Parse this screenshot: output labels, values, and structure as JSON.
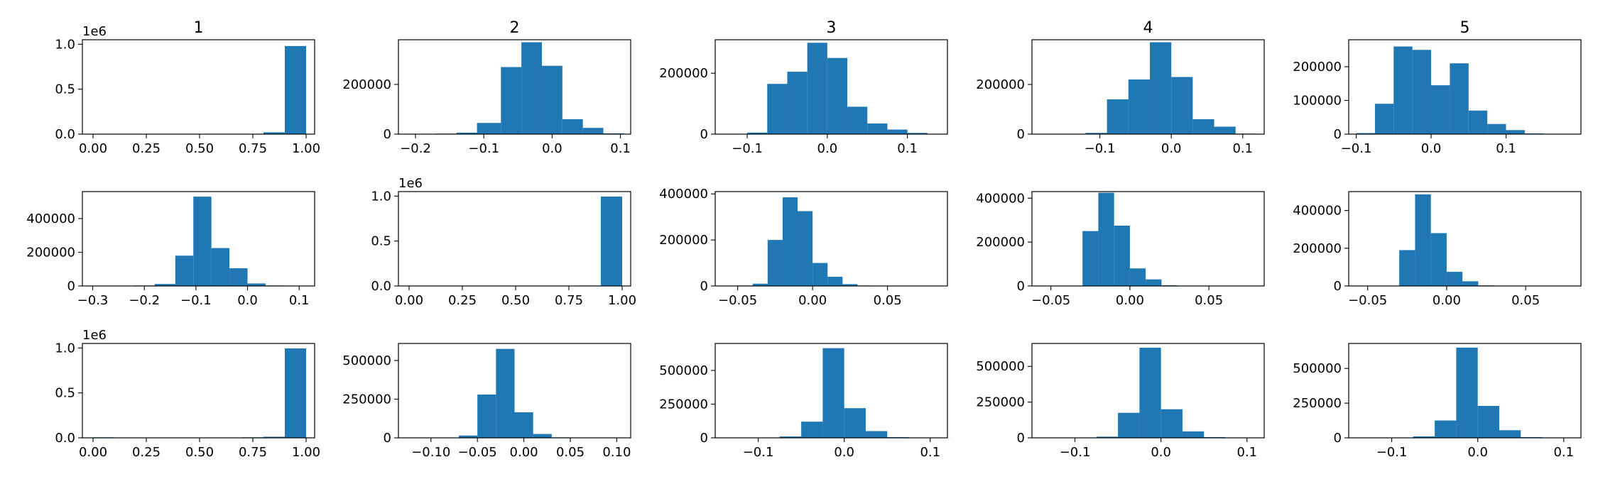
{
  "figure": {
    "bar_color": "#1f77b4",
    "background": "#ffffff"
  },
  "chart_data": [
    {
      "type": "bar",
      "row": 0,
      "col": 0,
      "title": "1",
      "xlim": [
        -0.05,
        1.04
      ],
      "ylim": [
        0,
        1.05
      ],
      "xticks": [
        0,
        0.25,
        0.5,
        0.75,
        1
      ],
      "xtick_labels": [
        "0.00",
        "0.25",
        "0.50",
        "0.75",
        "1.00"
      ],
      "yticks": [
        0,
        0.5,
        1
      ],
      "ytick_labels": [
        "0.0",
        "0.5",
        "1.0"
      ],
      "offset_label": "1e6",
      "bins": [
        [
          0.0,
          0.1,
          0.001
        ],
        [
          0.1,
          0.2,
          0.0005
        ],
        [
          0.2,
          0.3,
          0
        ],
        [
          0.3,
          0.4,
          0
        ],
        [
          0.4,
          0.5,
          0
        ],
        [
          0.5,
          0.6,
          0
        ],
        [
          0.6,
          0.7,
          0
        ],
        [
          0.7,
          0.8,
          0.002
        ],
        [
          0.8,
          0.9,
          0.02
        ],
        [
          0.9,
          1.0,
          0.98
        ]
      ]
    },
    {
      "type": "bar",
      "row": 0,
      "col": 1,
      "title": "2",
      "xlim": [
        -0.225,
        0.115
      ],
      "ylim": [
        0,
        380000
      ],
      "xticks": [
        -0.2,
        -0.1,
        0,
        0.1
      ],
      "xtick_labels": [
        "−0.2",
        "−0.1",
        "0.0",
        "0.1"
      ],
      "yticks": [
        0,
        200000
      ],
      "ytick_labels": [
        "0",
        "200000"
      ],
      "bins": [
        [
          -0.2,
          -0.17,
          1000
        ],
        [
          -0.17,
          -0.14,
          2000
        ],
        [
          -0.14,
          -0.11,
          6000
        ],
        [
          -0.11,
          -0.075,
          45000
        ],
        [
          -0.075,
          -0.045,
          270000
        ],
        [
          -0.045,
          -0.015,
          370000
        ],
        [
          -0.015,
          0.015,
          275000
        ],
        [
          0.015,
          0.045,
          60000
        ],
        [
          0.045,
          0.075,
          25000
        ],
        [
          0.075,
          0.105,
          3000
        ]
      ]
    },
    {
      "type": "bar",
      "row": 0,
      "col": 2,
      "title": "3",
      "xlim": [
        -0.14,
        0.15
      ],
      "ylim": [
        0,
        310000
      ],
      "xticks": [
        -0.1,
        0,
        0.1
      ],
      "xtick_labels": [
        "−0.1",
        "0.0",
        "0.1"
      ],
      "yticks": [
        0,
        200000
      ],
      "ytick_labels": [
        "0",
        "200000"
      ],
      "bins": [
        [
          -0.125,
          -0.1,
          1000
        ],
        [
          -0.1,
          -0.075,
          5000
        ],
        [
          -0.075,
          -0.05,
          165000
        ],
        [
          -0.05,
          -0.025,
          205000
        ],
        [
          -0.025,
          0.0,
          300000
        ],
        [
          0.0,
          0.025,
          250000
        ],
        [
          0.025,
          0.05,
          90000
        ],
        [
          0.05,
          0.075,
          35000
        ],
        [
          0.075,
          0.1,
          15000
        ],
        [
          0.1,
          0.125,
          4000
        ]
      ]
    },
    {
      "type": "bar",
      "row": 0,
      "col": 3,
      "title": "4",
      "xlim": [
        -0.195,
        0.13
      ],
      "ylim": [
        0,
        380000
      ],
      "xticks": [
        -0.1,
        0,
        0.1
      ],
      "xtick_labels": [
        "−0.1",
        "0.0",
        "0.1"
      ],
      "yticks": [
        0,
        200000
      ],
      "ytick_labels": [
        "0",
        "200000"
      ],
      "bins": [
        [
          -0.18,
          -0.15,
          500
        ],
        [
          -0.15,
          -0.12,
          1000
        ],
        [
          -0.12,
          -0.09,
          5000
        ],
        [
          -0.09,
          -0.06,
          140000
        ],
        [
          -0.06,
          -0.03,
          220000
        ],
        [
          -0.03,
          0.0,
          370000
        ],
        [
          0.0,
          0.03,
          230000
        ],
        [
          0.03,
          0.06,
          60000
        ],
        [
          0.06,
          0.09,
          30000
        ],
        [
          0.09,
          0.12,
          2000
        ]
      ]
    },
    {
      "type": "bar",
      "row": 0,
      "col": 4,
      "title": "5",
      "xlim": [
        -0.11,
        0.2
      ],
      "ylim": [
        0,
        280000
      ],
      "xticks": [
        -0.1,
        0,
        0.1
      ],
      "xtick_labels": [
        "−0.1",
        "0.0",
        "0.1"
      ],
      "yticks": [
        0,
        100000,
        200000
      ],
      "ytick_labels": [
        "0",
        "100000",
        "200000"
      ],
      "bins": [
        [
          -0.1,
          -0.075,
          3000
        ],
        [
          -0.075,
          -0.05,
          90000
        ],
        [
          -0.05,
          -0.025,
          260000
        ],
        [
          -0.025,
          0.0,
          250000
        ],
        [
          0.0,
          0.025,
          145000
        ],
        [
          0.025,
          0.05,
          210000
        ],
        [
          0.05,
          0.075,
          70000
        ],
        [
          0.075,
          0.1,
          30000
        ],
        [
          0.1,
          0.125,
          12000
        ],
        [
          0.125,
          0.15,
          2000
        ]
      ]
    },
    {
      "type": "bar",
      "row": 1,
      "col": 0,
      "title": "",
      "xlim": [
        -0.32,
        0.13
      ],
      "ylim": [
        0,
        560000
      ],
      "xticks": [
        -0.3,
        -0.2,
        -0.1,
        0,
        0.1
      ],
      "xtick_labels": [
        "−0.3",
        "−0.2",
        "−0.1",
        "0.0",
        "0.1"
      ],
      "yticks": [
        0,
        200000,
        400000
      ],
      "ytick_labels": [
        "0",
        "200000",
        "400000"
      ],
      "bins": [
        [
          -0.3,
          -0.26,
          500
        ],
        [
          -0.26,
          -0.22,
          1000
        ],
        [
          -0.22,
          -0.18,
          3000
        ],
        [
          -0.18,
          -0.14,
          12000
        ],
        [
          -0.14,
          -0.105,
          180000
        ],
        [
          -0.105,
          -0.07,
          530000
        ],
        [
          -0.07,
          -0.035,
          225000
        ],
        [
          -0.035,
          0.0,
          105000
        ],
        [
          0.0,
          0.035,
          15000
        ],
        [
          0.035,
          0.07,
          3000
        ]
      ]
    },
    {
      "type": "bar",
      "row": 1,
      "col": 1,
      "title": "",
      "xlim": [
        -0.05,
        1.04
      ],
      "ylim": [
        0,
        1.05
      ],
      "xticks": [
        0,
        0.25,
        0.5,
        0.75,
        1
      ],
      "xtick_labels": [
        "0.00",
        "0.25",
        "0.50",
        "0.75",
        "1.00"
      ],
      "yticks": [
        0,
        0.5,
        1
      ],
      "ytick_labels": [
        "0.0",
        "0.5",
        "1.0"
      ],
      "offset_label": "1e6",
      "bins": [
        [
          0.0,
          0.1,
          0.0005
        ],
        [
          0.1,
          0.2,
          0
        ],
        [
          0.2,
          0.3,
          0
        ],
        [
          0.3,
          0.4,
          0
        ],
        [
          0.4,
          0.5,
          0
        ],
        [
          0.5,
          0.6,
          0
        ],
        [
          0.6,
          0.7,
          0
        ],
        [
          0.7,
          0.8,
          0.001
        ],
        [
          0.8,
          0.9,
          0.005
        ],
        [
          0.9,
          1.0,
          0.995
        ]
      ]
    },
    {
      "type": "bar",
      "row": 1,
      "col": 2,
      "title": "",
      "xlim": [
        -0.065,
        0.09
      ],
      "ylim": [
        0,
        410000
      ],
      "xticks": [
        -0.05,
        0,
        0.05
      ],
      "xtick_labels": [
        "−0.05",
        "0.00",
        "0.05"
      ],
      "yticks": [
        0,
        200000,
        400000
      ],
      "ytick_labels": [
        "0",
        "200000",
        "400000"
      ],
      "bins": [
        [
          -0.05,
          -0.04,
          2000
        ],
        [
          -0.04,
          -0.03,
          10000
        ],
        [
          -0.03,
          -0.02,
          200000
        ],
        [
          -0.02,
          -0.01,
          385000
        ],
        [
          -0.01,
          0.0,
          325000
        ],
        [
          0.0,
          0.01,
          100000
        ],
        [
          0.01,
          0.02,
          40000
        ],
        [
          0.02,
          0.03,
          8000
        ],
        [
          0.03,
          0.04,
          2000
        ],
        [
          0.04,
          0.05,
          500
        ]
      ]
    },
    {
      "type": "bar",
      "row": 1,
      "col": 3,
      "title": "",
      "xlim": [
        -0.062,
        0.085
      ],
      "ylim": [
        0,
        430000
      ],
      "xticks": [
        -0.05,
        0,
        0.05
      ],
      "xtick_labels": [
        "−0.05",
        "0.00",
        "0.05"
      ],
      "yticks": [
        0,
        200000,
        400000
      ],
      "ytick_labels": [
        "0",
        "200000",
        "400000"
      ],
      "bins": [
        [
          -0.05,
          -0.04,
          500
        ],
        [
          -0.04,
          -0.03,
          1000
        ],
        [
          -0.03,
          -0.02,
          250000
        ],
        [
          -0.02,
          -0.01,
          425000
        ],
        [
          -0.01,
          0.0,
          275000
        ],
        [
          0.0,
          0.01,
          80000
        ],
        [
          0.01,
          0.02,
          30000
        ],
        [
          0.02,
          0.03,
          3000
        ],
        [
          0.03,
          0.04,
          1000
        ],
        [
          0.04,
          0.05,
          500
        ]
      ]
    },
    {
      "type": "bar",
      "row": 1,
      "col": 4,
      "title": "",
      "xlim": [
        -0.062,
        0.085
      ],
      "ylim": [
        0,
        500000
      ],
      "xticks": [
        -0.05,
        0,
        0.05
      ],
      "xtick_labels": [
        "−0.05",
        "0.00",
        "0.05"
      ],
      "yticks": [
        0,
        200000,
        400000
      ],
      "ytick_labels": [
        "0",
        "200000",
        "400000"
      ],
      "bins": [
        [
          -0.05,
          -0.04,
          500
        ],
        [
          -0.04,
          -0.03,
          1000
        ],
        [
          -0.03,
          -0.02,
          190000
        ],
        [
          -0.02,
          -0.01,
          485000
        ],
        [
          -0.01,
          0.0,
          280000
        ],
        [
          0.0,
          0.01,
          75000
        ],
        [
          0.01,
          0.02,
          25000
        ],
        [
          0.02,
          0.03,
          3000
        ],
        [
          0.03,
          0.04,
          1000
        ],
        [
          0.04,
          0.05,
          500
        ]
      ]
    },
    {
      "type": "bar",
      "row": 2,
      "col": 0,
      "title": "",
      "xlim": [
        -0.05,
        1.04
      ],
      "ylim": [
        0,
        1.05
      ],
      "xticks": [
        0,
        0.25,
        0.5,
        0.75,
        1
      ],
      "xtick_labels": [
        "0.00",
        "0.25",
        "0.50",
        "0.75",
        "1.00"
      ],
      "yticks": [
        0,
        0.5,
        1
      ],
      "ytick_labels": [
        "0.0",
        "0.5",
        "1.0"
      ],
      "offset_label": "1e6",
      "bins": [
        [
          0.0,
          0.1,
          0.006
        ],
        [
          0.1,
          0.2,
          0.001
        ],
        [
          0.2,
          0.3,
          0
        ],
        [
          0.3,
          0.4,
          0
        ],
        [
          0.4,
          0.5,
          0
        ],
        [
          0.5,
          0.6,
          0
        ],
        [
          0.6,
          0.7,
          0
        ],
        [
          0.7,
          0.8,
          0.006
        ],
        [
          0.8,
          0.9,
          0.012
        ],
        [
          0.9,
          1.0,
          0.995
        ]
      ]
    },
    {
      "type": "bar",
      "row": 2,
      "col": 1,
      "title": "",
      "xlim": [
        -0.135,
        0.115
      ],
      "ylim": [
        0,
        610000
      ],
      "xticks": [
        -0.1,
        -0.05,
        0,
        0.05,
        0.1
      ],
      "xtick_labels": [
        "−0.10",
        "−0.05",
        "0.00",
        "0.05",
        "0.10"
      ],
      "yticks": [
        0,
        250000,
        500000
      ],
      "ytick_labels": [
        "0",
        "250000",
        "500000"
      ],
      "bins": [
        [
          -0.11,
          -0.09,
          500
        ],
        [
          -0.09,
          -0.07,
          2000
        ],
        [
          -0.07,
          -0.05,
          15000
        ],
        [
          -0.05,
          -0.03,
          280000
        ],
        [
          -0.03,
          -0.01,
          575000
        ],
        [
          -0.01,
          0.01,
          165000
        ],
        [
          0.01,
          0.03,
          25000
        ],
        [
          0.03,
          0.05,
          3000
        ],
        [
          0.05,
          0.07,
          1000
        ],
        [
          0.07,
          0.09,
          500
        ]
      ]
    },
    {
      "type": "bar",
      "row": 2,
      "col": 2,
      "title": "",
      "xlim": [
        -0.15,
        0.12
      ],
      "ylim": [
        0,
        700000
      ],
      "xticks": [
        -0.1,
        0,
        0.1
      ],
      "xtick_labels": [
        "−0.1",
        "0.0",
        "0.1"
      ],
      "yticks": [
        0,
        250000,
        500000
      ],
      "ytick_labels": [
        "0",
        "250000",
        "500000"
      ],
      "bins": [
        [
          -0.125,
          -0.1,
          500
        ],
        [
          -0.1,
          -0.075,
          2000
        ],
        [
          -0.075,
          -0.05,
          10000
        ],
        [
          -0.05,
          -0.025,
          120000
        ],
        [
          -0.025,
          0.0,
          665000
        ],
        [
          0.0,
          0.025,
          220000
        ],
        [
          0.025,
          0.05,
          50000
        ],
        [
          0.05,
          0.075,
          5000
        ],
        [
          0.075,
          0.1,
          1000
        ],
        [
          0.1,
          0.125,
          500
        ]
      ]
    },
    {
      "type": "bar",
      "row": 2,
      "col": 3,
      "title": "",
      "xlim": [
        -0.15,
        0.12
      ],
      "ylim": [
        0,
        660000
      ],
      "xticks": [
        -0.1,
        0,
        0.1
      ],
      "xtick_labels": [
        "−0.1",
        "0.0",
        "0.1"
      ],
      "yticks": [
        0,
        250000,
        500000
      ],
      "ytick_labels": [
        "0",
        "250000",
        "500000"
      ],
      "bins": [
        [
          -0.125,
          -0.1,
          500
        ],
        [
          -0.1,
          -0.075,
          2000
        ],
        [
          -0.075,
          -0.05,
          8000
        ],
        [
          -0.05,
          -0.025,
          175000
        ],
        [
          -0.025,
          0.0,
          630000
        ],
        [
          0.0,
          0.025,
          200000
        ],
        [
          0.025,
          0.05,
          45000
        ],
        [
          0.05,
          0.075,
          5000
        ],
        [
          0.075,
          0.1,
          1000
        ],
        [
          0.1,
          0.125,
          500
        ]
      ]
    },
    {
      "type": "bar",
      "row": 2,
      "col": 4,
      "title": "",
      "xlim": [
        -0.15,
        0.12
      ],
      "ylim": [
        0,
        680000
      ],
      "xticks": [
        -0.1,
        0,
        0.1
      ],
      "xtick_labels": [
        "−0.1",
        "0.0",
        "0.1"
      ],
      "yticks": [
        0,
        250000,
        500000
      ],
      "ytick_labels": [
        "0",
        "250000",
        "500000"
      ],
      "bins": [
        [
          -0.125,
          -0.1,
          500
        ],
        [
          -0.1,
          -0.075,
          2000
        ],
        [
          -0.075,
          -0.05,
          10000
        ],
        [
          -0.05,
          -0.025,
          125000
        ],
        [
          -0.025,
          0.0,
          650000
        ],
        [
          0.0,
          0.025,
          230000
        ],
        [
          0.025,
          0.05,
          55000
        ],
        [
          0.05,
          0.075,
          5000
        ],
        [
          0.075,
          0.1,
          1000
        ],
        [
          0.1,
          0.125,
          500
        ]
      ]
    }
  ]
}
